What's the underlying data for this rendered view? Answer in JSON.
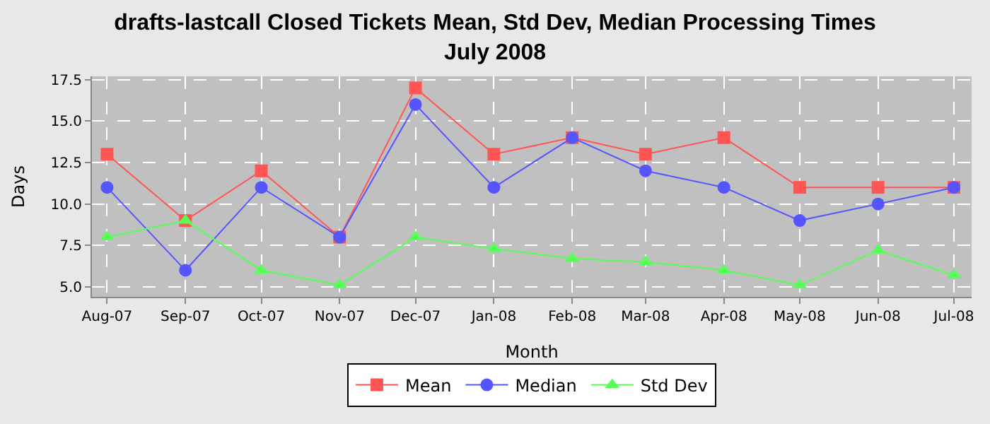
{
  "chart_data": {
    "type": "line",
    "title": "drafts-lastcall Closed Tickets Mean, Std Dev, Median Processing Times\nJuly 2008",
    "xlabel": "Month",
    "ylabel": "Days",
    "x": [
      "2007-08",
      "2007-09",
      "2007-10",
      "2007-11",
      "2007-12",
      "2008-01",
      "2008-02",
      "2008-03",
      "2008-04",
      "2008-05",
      "2008-06",
      "2008-07"
    ],
    "series": [
      {
        "name": "Mean",
        "color": "#ff5555",
        "marker": "square",
        "values": [
          13,
          9,
          12,
          8,
          17,
          13,
          14,
          13,
          14,
          11,
          11,
          11
        ]
      },
      {
        "name": "Median",
        "color": "#5555ff",
        "marker": "circle",
        "values": [
          11,
          6,
          11,
          8,
          16,
          11,
          14,
          12,
          11,
          9,
          10,
          11
        ]
      },
      {
        "name": "Std Dev",
        "color": "#55ff55",
        "marker": "triangle",
        "values": [
          8.0,
          9.0,
          6.0,
          5.1,
          8.0,
          7.3,
          6.7,
          6.5,
          6.0,
          5.1,
          7.2,
          5.7
        ]
      }
    ],
    "xlim": [
      "2007-07-26",
      "2008-07-08"
    ],
    "xticks": [
      {
        "value": "2007-08",
        "label": "Aug-07"
      },
      {
        "value": "2007-09",
        "label": "Sep-07"
      },
      {
        "value": "2007-10",
        "label": "Oct-07"
      },
      {
        "value": "2007-11",
        "label": "Nov-07"
      },
      {
        "value": "2007-12",
        "label": "Dec-07"
      },
      {
        "value": "2008-01",
        "label": "Jan-08"
      },
      {
        "value": "2008-02",
        "label": "Feb-08"
      },
      {
        "value": "2008-03",
        "label": "Mar-08"
      },
      {
        "value": "2008-04",
        "label": "Apr-08"
      },
      {
        "value": "2008-05",
        "label": "May-08"
      },
      {
        "value": "2008-06",
        "label": "Jun-08"
      },
      {
        "value": "2008-07",
        "label": "Jul-08"
      }
    ],
    "ylim": [
      4.4,
      17.7
    ],
    "yticks": [
      {
        "value": 5,
        "label": "5.0"
      },
      {
        "value": 7.5,
        "label": "7.5"
      },
      {
        "value": 10,
        "label": "10.0"
      },
      {
        "value": 12.5,
        "label": "12.5"
      },
      {
        "value": 15,
        "label": "15.0"
      },
      {
        "value": 17.5,
        "label": "17.5"
      }
    ],
    "grid": true,
    "legend": "bottom",
    "line_style": "solid"
  }
}
